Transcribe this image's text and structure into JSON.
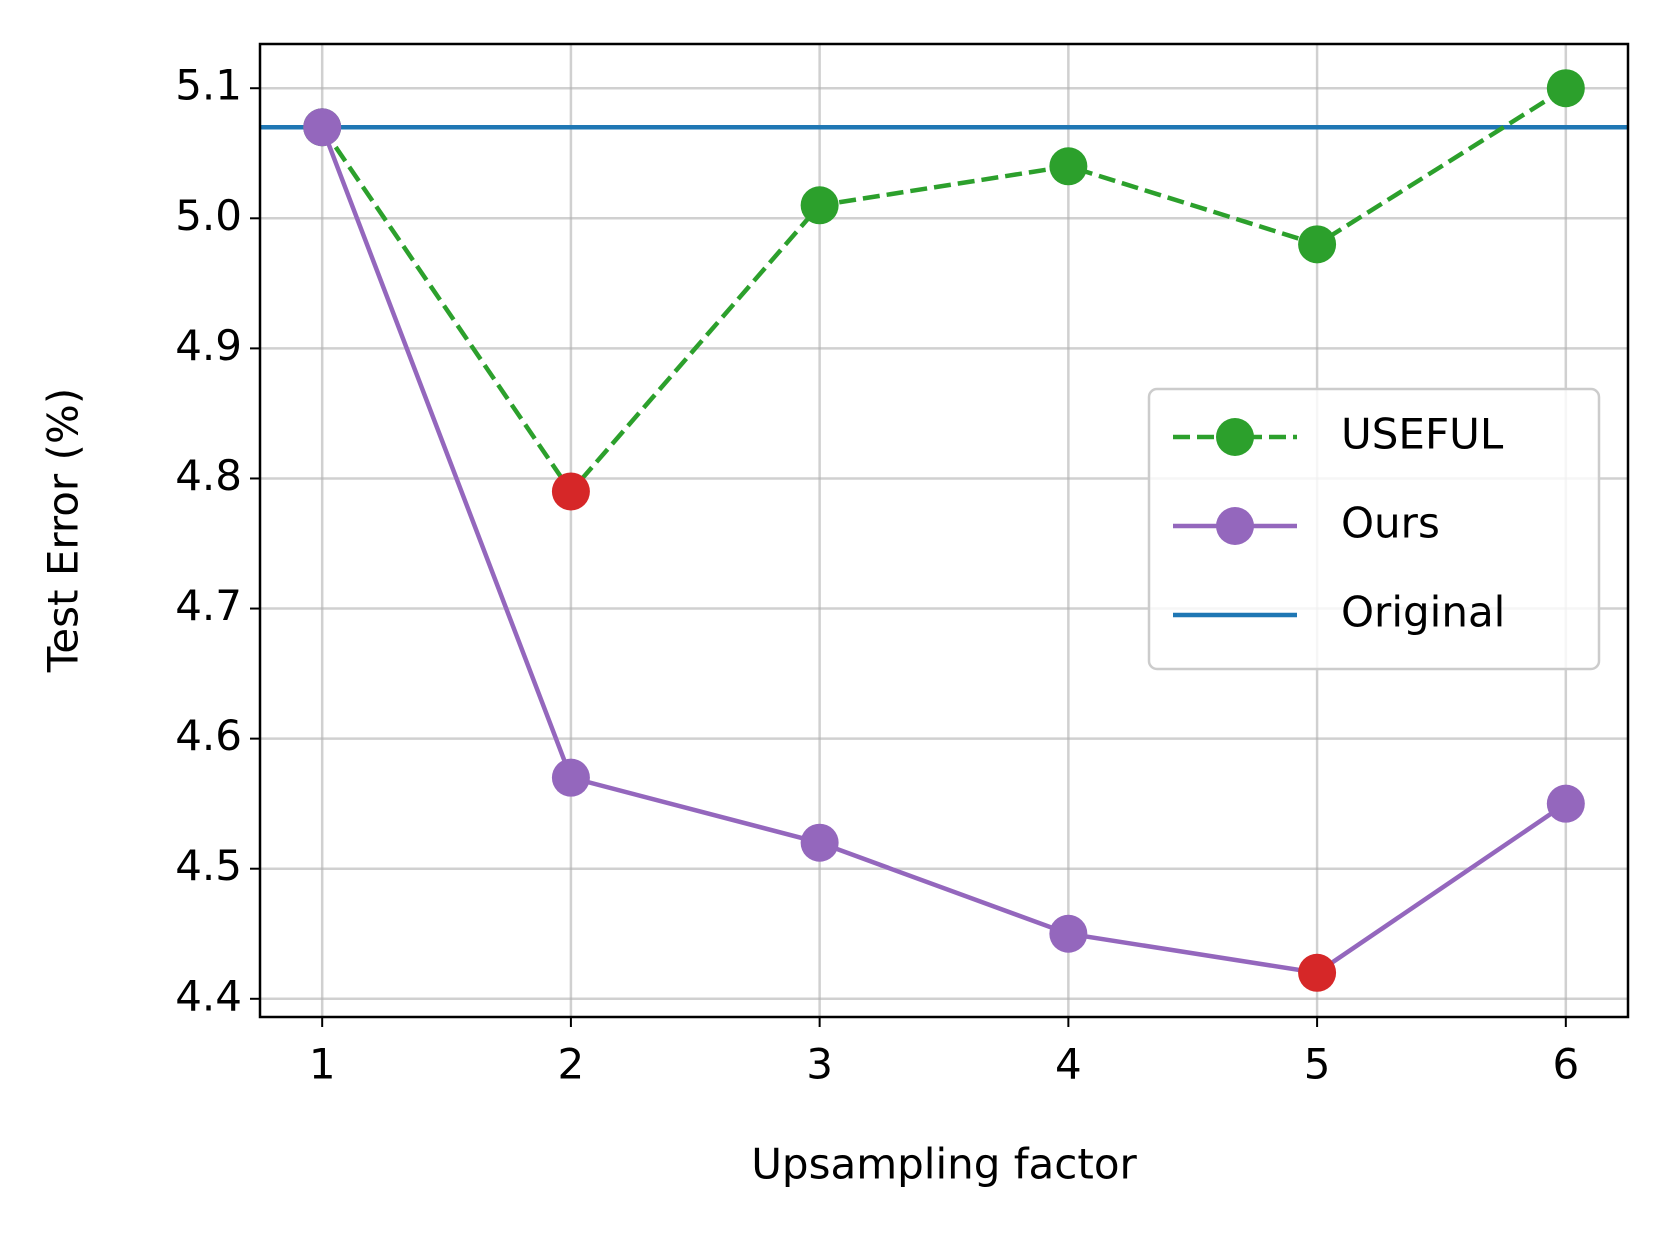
{
  "chart_data": {
    "type": "line",
    "xlabel": "Upsampling factor",
    "ylabel": "Test Error (%)",
    "x": [
      1,
      2,
      3,
      4,
      5,
      6
    ],
    "series": [
      {
        "name": "USEFUL",
        "color": "#2ca02c",
        "linestyle": "dashed",
        "marker": "circle",
        "values": [
          5.07,
          4.79,
          5.01,
          5.04,
          4.98,
          5.1
        ],
        "highlight_index": 1
      },
      {
        "name": "Ours",
        "color": "#9467bd",
        "linestyle": "solid",
        "marker": "circle",
        "values": [
          5.07,
          4.57,
          4.52,
          4.45,
          4.42,
          4.55
        ],
        "highlight_index": 4
      }
    ],
    "hlines": [
      {
        "name": "Original",
        "color": "#1f77b4",
        "value": 5.07
      }
    ],
    "highlight_color": "#d62728",
    "xlim": [
      0.75,
      6.25
    ],
    "xticks": [
      1,
      2,
      3,
      4,
      5,
      6
    ],
    "ylim": [
      4.386,
      5.134
    ],
    "yticks": [
      4.4,
      4.5,
      4.6,
      4.7,
      4.8,
      4.9,
      {
        "value": 5,
        "label": "5.0"
      },
      5.1
    ],
    "grid": true,
    "legend": "center right"
  }
}
